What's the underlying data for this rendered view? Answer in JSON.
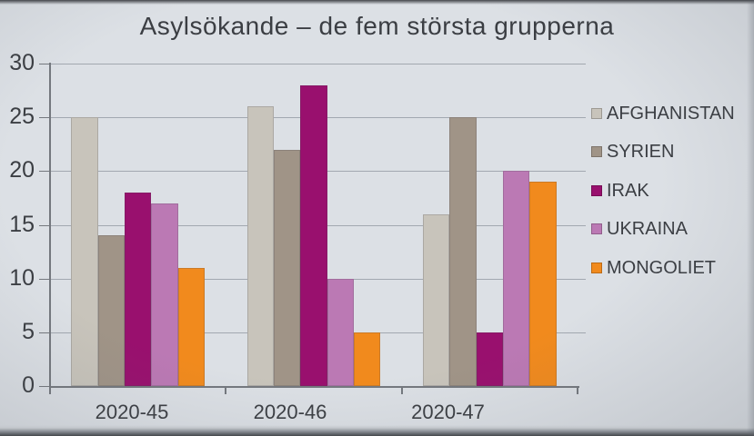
{
  "chart_data": {
    "type": "bar",
    "title": "Asylsökande – de fem största grupperna",
    "categories": [
      "2020-45",
      "2020-46",
      "2020-47"
    ],
    "series": [
      {
        "name": "AFGHANISTAN",
        "color": "#c8c4bb",
        "values": [
          25,
          26,
          16
        ]
      },
      {
        "name": "SYRIEN",
        "color": "#a09487",
        "values": [
          14,
          22,
          25
        ]
      },
      {
        "name": "IRAK",
        "color": "#99106e",
        "values": [
          18,
          28,
          5
        ]
      },
      {
        "name": "UKRAINA",
        "color": "#bb79b4",
        "values": [
          17,
          10,
          20
        ]
      },
      {
        "name": "MONGOLIET",
        "color": "#f18a1d",
        "values": [
          11,
          5,
          19
        ]
      }
    ],
    "ylim": [
      0,
      30
    ],
    "yticks": [
      0,
      5,
      10,
      15,
      20,
      25,
      30
    ],
    "grid": "horizontal",
    "legend_position": "right",
    "colors": {
      "text": "#3b3e43",
      "gridline": "#a2a8b0",
      "axis": "#74787e",
      "background": "#dce0e5"
    }
  }
}
